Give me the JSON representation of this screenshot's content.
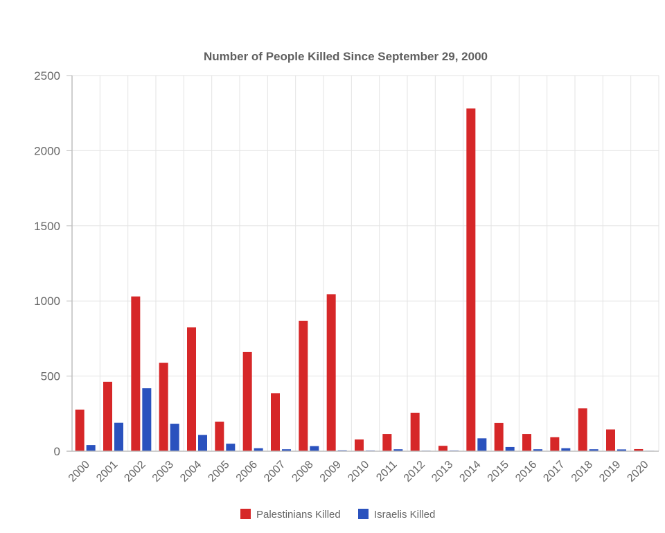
{
  "chart_data": {
    "type": "bar",
    "title": "Number of People Killed Since September 29, 2000",
    "categories": [
      "2000",
      "2001",
      "2002",
      "2003",
      "2004",
      "2005",
      "2006",
      "2007",
      "2008",
      "2009",
      "2010",
      "2011",
      "2012",
      "2013",
      "2014",
      "2015",
      "2016",
      "2017",
      "2018",
      "2019",
      "2020"
    ],
    "series": [
      {
        "name": "Palestinians Killed",
        "color": "#d62728",
        "values": [
          277,
          462,
          1030,
          588,
          824,
          196,
          660,
          386,
          868,
          1045,
          78,
          115,
          255,
          36,
          2281,
          189,
          115,
          93,
          285,
          145,
          14
        ]
      },
      {
        "name": "Israelis Killed",
        "color": "#2a52be",
        "values": [
          41,
          190,
          419,
          182,
          108,
          50,
          20,
          13,
          34,
          6,
          5,
          13,
          4,
          5,
          86,
          28,
          13,
          20,
          13,
          12,
          3
        ]
      }
    ],
    "ylim": [
      0,
      2500
    ],
    "yticks": [
      0,
      500,
      1000,
      1500,
      2000,
      2500
    ],
    "grid": true,
    "legend_position": "bottom"
  }
}
